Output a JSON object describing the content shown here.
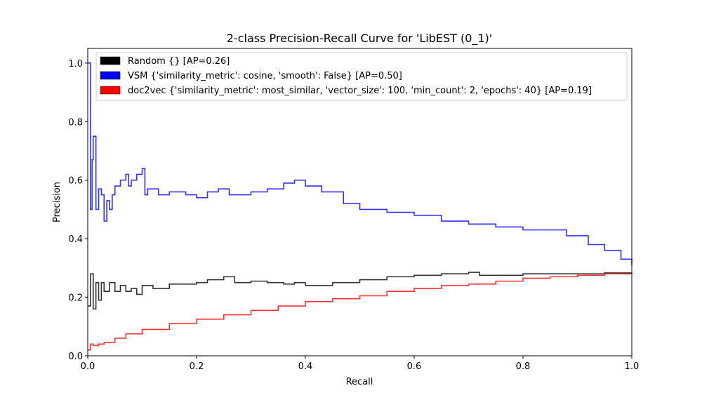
{
  "chart_data": {
    "type": "line",
    "title": "2-class Precision-Recall Curve for 'LibEST (0_1)'",
    "xlabel": "Recall",
    "ylabel": "Precision",
    "xlim": [
      0,
      1
    ],
    "ylim": [
      0,
      1.05
    ],
    "xticks": [
      "0.0",
      "0.2",
      "0.4",
      "0.6",
      "0.8",
      "1.0"
    ],
    "yticks": [
      "0.0",
      "0.2",
      "0.4",
      "0.6",
      "0.8",
      "1.0"
    ],
    "grid": false,
    "legend_position": "top-left",
    "series": [
      {
        "name": "Random {} [AP=0.26]",
        "color": "#000000",
        "points": [
          [
            0,
            0.17
          ],
          [
            0.005,
            0.28
          ],
          [
            0.01,
            0.16
          ],
          [
            0.015,
            0.25
          ],
          [
            0.02,
            0.19
          ],
          [
            0.025,
            0.25
          ],
          [
            0.03,
            0.22
          ],
          [
            0.04,
            0.25
          ],
          [
            0.05,
            0.22
          ],
          [
            0.06,
            0.24
          ],
          [
            0.07,
            0.22
          ],
          [
            0.08,
            0.23
          ],
          [
            0.09,
            0.21
          ],
          [
            0.1,
            0.24
          ],
          [
            0.12,
            0.23
          ],
          [
            0.15,
            0.245
          ],
          [
            0.18,
            0.245
          ],
          [
            0.2,
            0.25
          ],
          [
            0.22,
            0.26
          ],
          [
            0.25,
            0.27
          ],
          [
            0.27,
            0.25
          ],
          [
            0.3,
            0.255
          ],
          [
            0.33,
            0.25
          ],
          [
            0.36,
            0.245
          ],
          [
            0.38,
            0.25
          ],
          [
            0.4,
            0.24
          ],
          [
            0.45,
            0.25
          ],
          [
            0.5,
            0.26
          ],
          [
            0.55,
            0.27
          ],
          [
            0.6,
            0.275
          ],
          [
            0.65,
            0.28
          ],
          [
            0.7,
            0.285
          ],
          [
            0.72,
            0.275
          ],
          [
            0.75,
            0.275
          ],
          [
            0.8,
            0.28
          ],
          [
            0.85,
            0.28
          ],
          [
            0.9,
            0.28
          ],
          [
            0.95,
            0.283
          ],
          [
            1.0,
            0.283
          ]
        ]
      },
      {
        "name": "VSM {'similarity_metric': cosine, 'smooth': False} [AP=0.50]",
        "color": "#0000ff",
        "points": [
          [
            0,
            1.0
          ],
          [
            0.005,
            0.5
          ],
          [
            0.008,
            0.67
          ],
          [
            0.01,
            0.75
          ],
          [
            0.015,
            0.5
          ],
          [
            0.02,
            0.57
          ],
          [
            0.025,
            0.55
          ],
          [
            0.03,
            0.46
          ],
          [
            0.035,
            0.53
          ],
          [
            0.04,
            0.5
          ],
          [
            0.045,
            0.55
          ],
          [
            0.05,
            0.58
          ],
          [
            0.06,
            0.6
          ],
          [
            0.07,
            0.62
          ],
          [
            0.075,
            0.58
          ],
          [
            0.08,
            0.6
          ],
          [
            0.09,
            0.62
          ],
          [
            0.1,
            0.64
          ],
          [
            0.105,
            0.55
          ],
          [
            0.11,
            0.57
          ],
          [
            0.13,
            0.55
          ],
          [
            0.15,
            0.56
          ],
          [
            0.18,
            0.55
          ],
          [
            0.2,
            0.54
          ],
          [
            0.22,
            0.56
          ],
          [
            0.24,
            0.57
          ],
          [
            0.26,
            0.55
          ],
          [
            0.3,
            0.56
          ],
          [
            0.33,
            0.57
          ],
          [
            0.36,
            0.59
          ],
          [
            0.38,
            0.6
          ],
          [
            0.4,
            0.58
          ],
          [
            0.43,
            0.56
          ],
          [
            0.47,
            0.52
          ],
          [
            0.5,
            0.5
          ],
          [
            0.55,
            0.49
          ],
          [
            0.6,
            0.48
          ],
          [
            0.65,
            0.46
          ],
          [
            0.7,
            0.45
          ],
          [
            0.75,
            0.44
          ],
          [
            0.8,
            0.43
          ],
          [
            0.85,
            0.43
          ],
          [
            0.88,
            0.41
          ],
          [
            0.92,
            0.38
          ],
          [
            0.95,
            0.36
          ],
          [
            0.98,
            0.33
          ],
          [
            1.0,
            0.31
          ]
        ]
      },
      {
        "name": "doc2vec {'similarity_metric': most_similar, 'vector_size': 100, 'min_count': 2, 'epochs': 40} [AP=0.19]",
        "color": "#ff0000",
        "points": [
          [
            0,
            0.02
          ],
          [
            0.005,
            0.04
          ],
          [
            0.01,
            0.035
          ],
          [
            0.02,
            0.04
          ],
          [
            0.03,
            0.045
          ],
          [
            0.05,
            0.06
          ],
          [
            0.07,
            0.075
          ],
          [
            0.1,
            0.09
          ],
          [
            0.15,
            0.11
          ],
          [
            0.2,
            0.125
          ],
          [
            0.25,
            0.14
          ],
          [
            0.3,
            0.155
          ],
          [
            0.35,
            0.17
          ],
          [
            0.4,
            0.185
          ],
          [
            0.45,
            0.195
          ],
          [
            0.5,
            0.205
          ],
          [
            0.55,
            0.22
          ],
          [
            0.6,
            0.23
          ],
          [
            0.65,
            0.24
          ],
          [
            0.7,
            0.245
          ],
          [
            0.75,
            0.255
          ],
          [
            0.8,
            0.265
          ],
          [
            0.85,
            0.27
          ],
          [
            0.9,
            0.275
          ],
          [
            0.95,
            0.28
          ],
          [
            1.0,
            0.283
          ]
        ]
      }
    ]
  }
}
